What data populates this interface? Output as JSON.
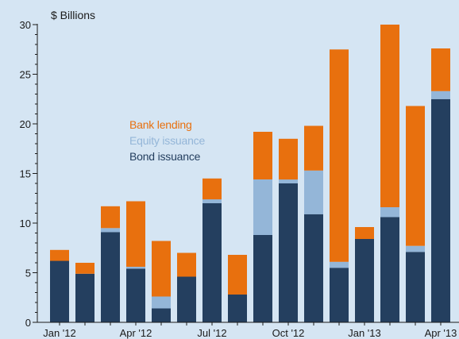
{
  "chart_data": {
    "type": "bar",
    "stacked": true,
    "unit_label": "$ Billions",
    "categories": [
      "Jan '12",
      "Feb '12",
      "Mar '12",
      "Apr '12",
      "May '12",
      "Jun '12",
      "Jul '12",
      "Aug '12",
      "Sep '12",
      "Oct '12",
      "Nov '12",
      "Dec '12",
      "Jan '13",
      "Feb '13",
      "Mar '13",
      "Apr '13"
    ],
    "x_tick_labels": [
      "Jan '12",
      "Apr '12",
      "Jul '12",
      "Oct '12",
      "Jan '13",
      "Apr '13"
    ],
    "series": [
      {
        "name": "Bond issuance",
        "color": "#243f5f",
        "values": [
          6.2,
          4.9,
          9.1,
          5.4,
          1.4,
          4.6,
          12.0,
          2.8,
          8.8,
          14.0,
          10.9,
          5.5,
          8.4,
          10.6,
          7.1,
          22.5
        ]
      },
      {
        "name": "Equity issuance",
        "color": "#94b6d8",
        "values": [
          0,
          0,
          0.4,
          0.2,
          1.2,
          0,
          0.4,
          0,
          5.6,
          0.4,
          4.4,
          0.6,
          0,
          1.0,
          0.6,
          0.8
        ]
      },
      {
        "name": "Bank lending",
        "color": "#e8700e",
        "values": [
          1.1,
          1.1,
          2.2,
          6.6,
          5.6,
          2.4,
          2.1,
          4.0,
          4.8,
          4.1,
          4.5,
          21.4,
          1.2,
          18.4,
          14.1,
          4.3
        ]
      }
    ],
    "legend_order": [
      "Bank lending",
      "Equity issuance",
      "Bond issuance"
    ],
    "legend_position": "upper-left",
    "ylim": [
      0,
      30
    ],
    "y_ticks": [
      0,
      5,
      10,
      15,
      20,
      25,
      30
    ],
    "y_minor_step": 1,
    "grid": false,
    "background": "#d5e5f3"
  }
}
